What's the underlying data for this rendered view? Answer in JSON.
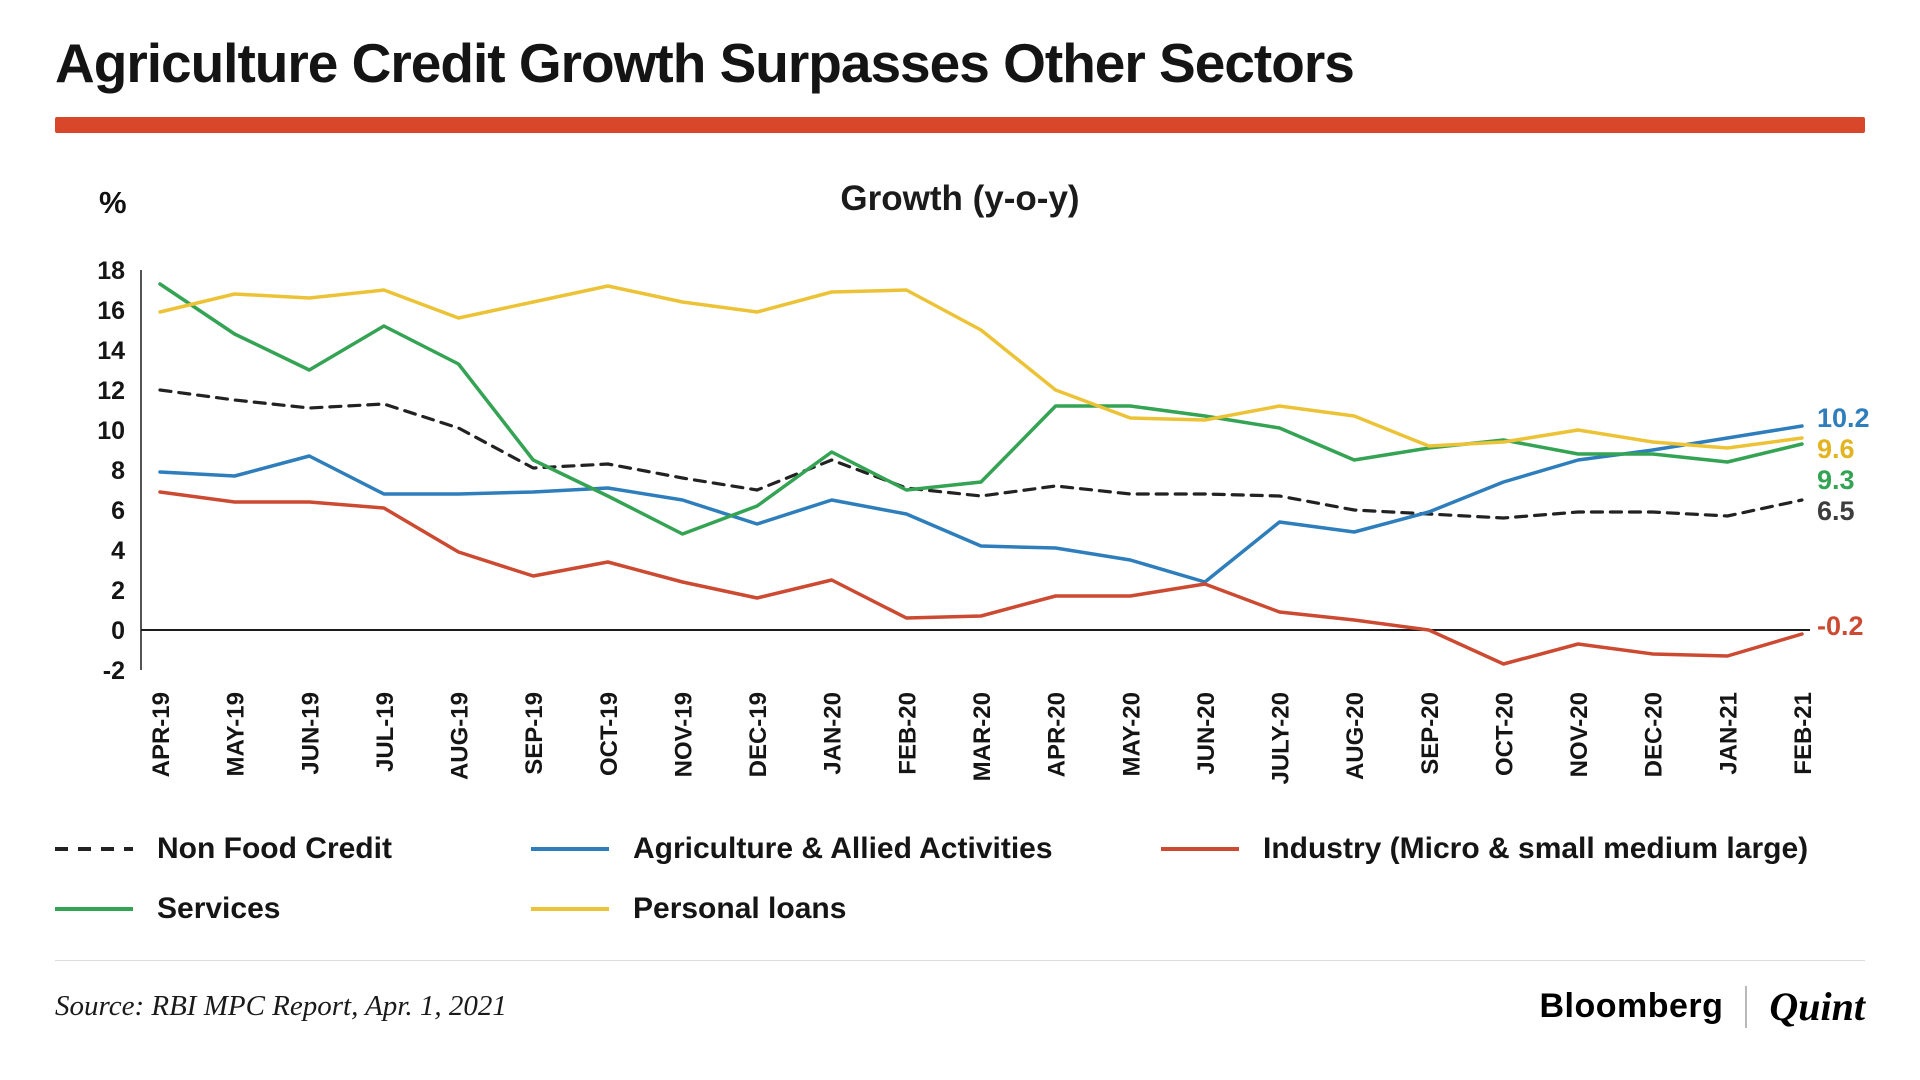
{
  "page": {
    "title": "Agriculture Credit Growth Surpasses Other Sectors",
    "accent_color": "#d9472b",
    "source": "Source: RBI MPC Report, Apr. 1, 2021",
    "brand": {
      "bloomberg": "Bloomberg",
      "quint": "Quint"
    }
  },
  "chart_data": {
    "type": "line",
    "title": "Growth (y-o-y)",
    "ylabel": "%",
    "ylim": [
      -2,
      18
    ],
    "ytick_step": 2,
    "grid": false,
    "legend_position": "bottom",
    "categories": [
      "APR-19",
      "MAY-19",
      "JUN-19",
      "JUL-19",
      "AUG-19",
      "SEP-19",
      "OCT-19",
      "NOV-19",
      "DEC-19",
      "JAN-20",
      "FEB-20",
      "MAR-20",
      "APR-20",
      "MAY-20",
      "JUN-20",
      "JULY-20",
      "AUG-20",
      "SEP-20",
      "OCT-20",
      "NOV-20",
      "DEC-20",
      "JAN-21",
      "FEB-21"
    ],
    "series": [
      {
        "name": "Non Food Credit",
        "color": "#222222",
        "label_color": "#3d3d3d",
        "dashed": true,
        "end_label": "6.5",
        "values": [
          12.0,
          11.5,
          11.1,
          11.3,
          10.1,
          8.1,
          8.3,
          7.6,
          7.0,
          8.5,
          7.1,
          6.7,
          7.2,
          6.8,
          6.8,
          6.7,
          6.0,
          5.8,
          5.6,
          5.9,
          5.9,
          5.7,
          6.5
        ]
      },
      {
        "name": "Agriculture & Allied Activities",
        "color": "#2e7ebc",
        "label_color": "#2e7ebc",
        "dashed": false,
        "end_label": "10.2",
        "values": [
          7.9,
          7.7,
          8.7,
          6.8,
          6.8,
          6.9,
          7.1,
          6.5,
          5.3,
          6.5,
          5.8,
          4.2,
          4.1,
          3.5,
          2.4,
          5.4,
          4.9,
          5.9,
          7.4,
          8.5,
          9.0,
          9.6,
          10.2
        ]
      },
      {
        "name": "Industry (Micro & small medium large)",
        "color": "#cc4a31",
        "label_color": "#cc4a31",
        "dashed": false,
        "end_label": "-0.2",
        "values": [
          6.9,
          6.4,
          6.4,
          6.1,
          3.9,
          2.7,
          3.4,
          2.4,
          1.6,
          2.5,
          0.6,
          0.7,
          1.7,
          1.7,
          2.3,
          0.9,
          0.5,
          0.0,
          -1.7,
          -0.7,
          -1.2,
          -1.3,
          -0.2
        ]
      },
      {
        "name": "Services",
        "color": "#34a353",
        "label_color": "#34a353",
        "dashed": false,
        "end_label": "9.3",
        "values": [
          17.3,
          14.8,
          13.0,
          15.2,
          13.3,
          8.5,
          6.7,
          4.8,
          6.2,
          8.9,
          7.0,
          7.4,
          11.2,
          11.2,
          10.7,
          10.1,
          8.5,
          9.1,
          9.5,
          8.8,
          8.8,
          8.4,
          9.3
        ]
      },
      {
        "name": "Personal loans",
        "color": "#ecc337",
        "label_color": "#e2b422",
        "dashed": false,
        "end_label": "9.6",
        "values": [
          15.9,
          16.8,
          16.6,
          17.0,
          15.6,
          16.4,
          17.2,
          16.4,
          15.9,
          16.9,
          17.0,
          15.0,
          12.0,
          10.6,
          10.5,
          11.2,
          10.7,
          9.2,
          9.4,
          10.0,
          9.4,
          9.1,
          9.6
        ]
      }
    ]
  }
}
